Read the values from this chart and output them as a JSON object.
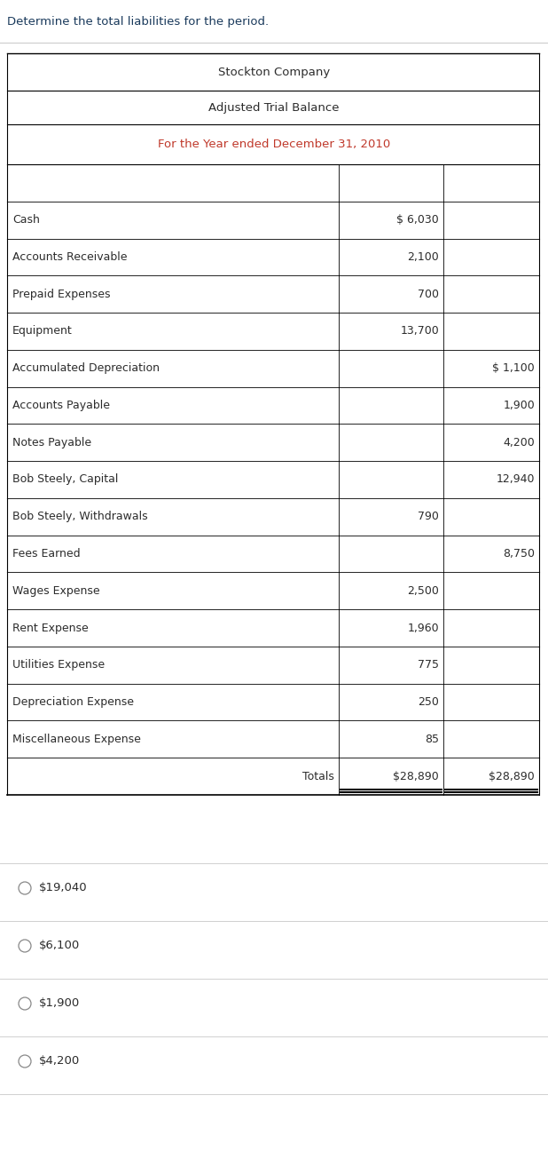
{
  "question_text": "Determine the total liabilities for the period.",
  "company_name": "Stockton Company",
  "report_title": "Adjusted Trial Balance",
  "period": "For the Year ended December 31, 2010",
  "rows": [
    {
      "label": "",
      "debit": "",
      "credit": ""
    },
    {
      "label": "Cash",
      "debit": "$ 6,030",
      "credit": ""
    },
    {
      "label": "Accounts Receivable",
      "debit": "2,100",
      "credit": ""
    },
    {
      "label": "Prepaid Expenses",
      "debit": "700",
      "credit": ""
    },
    {
      "label": "Equipment",
      "debit": "13,700",
      "credit": ""
    },
    {
      "label": "Accumulated Depreciation",
      "debit": "",
      "credit": "$ 1,100"
    },
    {
      "label": "Accounts Payable",
      "debit": "",
      "credit": "1,900"
    },
    {
      "label": "Notes Payable",
      "debit": "",
      "credit": "4,200"
    },
    {
      "label": "Bob Steely, Capital",
      "debit": "",
      "credit": "12,940"
    },
    {
      "label": "Bob Steely, Withdrawals",
      "debit": "790",
      "credit": ""
    },
    {
      "label": "Fees Earned",
      "debit": "",
      "credit": "8,750"
    },
    {
      "label": "Wages Expense",
      "debit": "2,500",
      "credit": ""
    },
    {
      "label": "Rent Expense",
      "debit": "1,960",
      "credit": ""
    },
    {
      "label": "Utilities Expense",
      "debit": "775",
      "credit": ""
    },
    {
      "label": "Depreciation Expense",
      "debit": "250",
      "credit": ""
    },
    {
      "label": "Miscellaneous Expense",
      "debit": "85",
      "credit": ""
    },
    {
      "label": "Totals",
      "debit": "$28,890",
      "credit": "$28,890",
      "is_total": true
    }
  ],
  "choices": [
    "$19,040",
    "$6,100",
    "$1,900",
    "$4,200"
  ],
  "bg_color": "#ffffff",
  "text_color": "#2c2c2c",
  "period_color": "#c0392b",
  "question_color": "#1a3a5c"
}
